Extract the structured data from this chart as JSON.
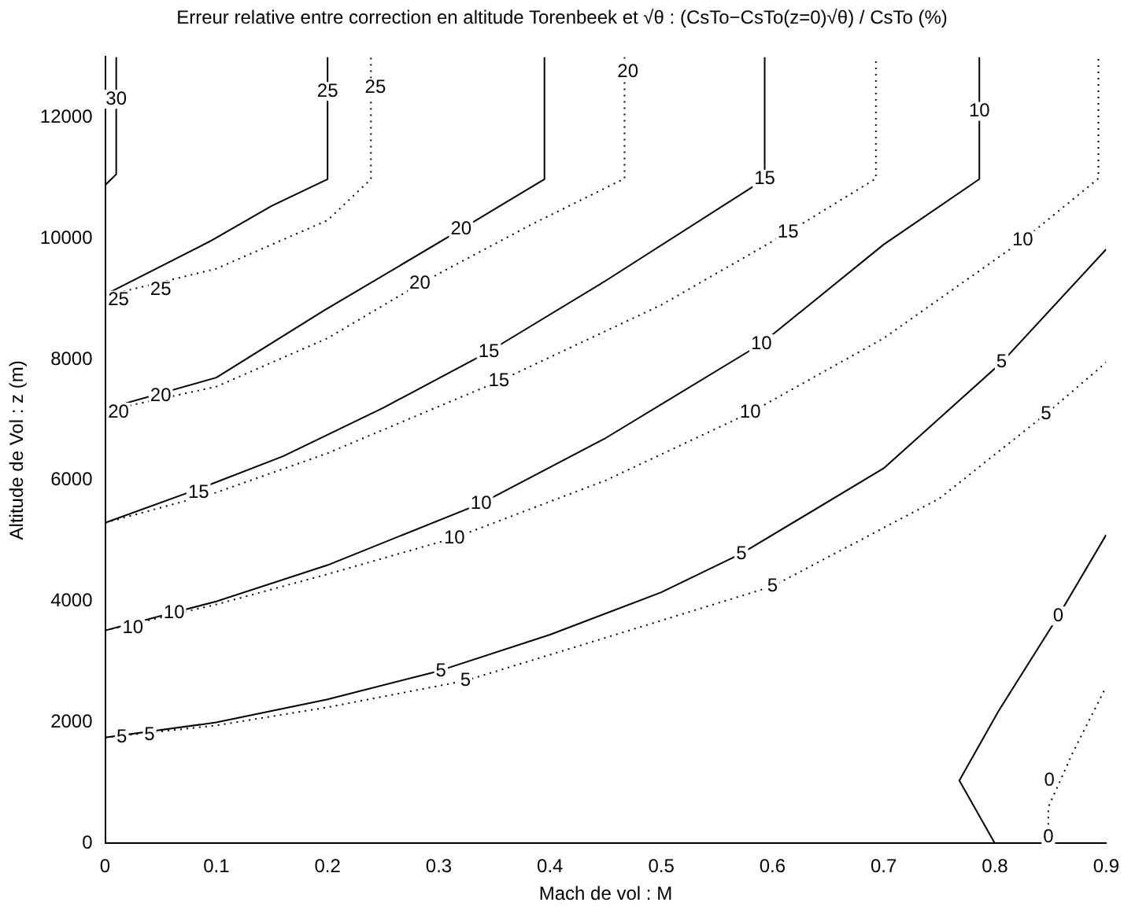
{
  "chart_data": {
    "type": "line",
    "title": "Erreur relative entre correction en altitude Torenbeek et √θ : (CsTo−CsTo(z=0)√θ) / CsTo (%)",
    "xlabel": "Mach de vol : M",
    "ylabel": "Altitude de Vol : z (m)",
    "xlim": [
      0,
      0.9
    ],
    "xticks": [
      0,
      0.1,
      0.2,
      0.3,
      0.4,
      0.5,
      0.6,
      0.7,
      0.8,
      0.9
    ],
    "ylim": [
      0,
      13000
    ],
    "yticks": [
      0,
      2000,
      4000,
      6000,
      8000,
      10000,
      12000
    ],
    "grid": false,
    "legend": false,
    "marker": "none",
    "series": [
      {
        "color": "#000000",
        "line_style": "solid",
        "x": [
          0,
          0.01,
          0.01
        ],
        "values": [
          10880,
          11060,
          13000
        ]
      },
      {
        "color": "#000000",
        "line_style": "solid",
        "x": [
          0,
          0.094,
          0.15,
          0.2,
          0.2
        ],
        "values": [
          9070,
          9950,
          10540,
          10980,
          13000
        ]
      },
      {
        "color": "#000000",
        "line_style": "dotted",
        "x": [
          0,
          0.1,
          0.2,
          0.239,
          0.239
        ],
        "values": [
          9050,
          9500,
          10300,
          10980,
          13000
        ]
      },
      {
        "color": "#000000",
        "line_style": "solid",
        "x": [
          0,
          0.1,
          0.197,
          0.32,
          0.395,
          0.395
        ],
        "values": [
          7180,
          7700,
          8810,
          10150,
          10980,
          13000
        ]
      },
      {
        "color": "#000000",
        "line_style": "dotted",
        "x": [
          0,
          0.1,
          0.2,
          0.283,
          0.38,
          0.467,
          0.467
        ],
        "values": [
          7150,
          7550,
          8350,
          9250,
          10200,
          10990,
          13000
        ]
      },
      {
        "color": "#000000",
        "line_style": "solid",
        "x": [
          0,
          0.09,
          0.16,
          0.25,
          0.345,
          0.45,
          0.593,
          0.593
        ],
        "values": [
          5300,
          5900,
          6400,
          7200,
          8130,
          9300,
          10980,
          13000
        ]
      },
      {
        "color": "#000000",
        "line_style": "dotted",
        "x": [
          0,
          0.1,
          0.2,
          0.354,
          0.5,
          0.614,
          0.693,
          0.693
        ],
        "values": [
          5300,
          5800,
          6450,
          7640,
          8900,
          10100,
          10990,
          13000
        ]
      },
      {
        "color": "#000000",
        "line_style": "solid",
        "x": [
          0,
          0.1,
          0.2,
          0.338,
          0.45,
          0.59,
          0.7,
          0.786,
          0.786
        ],
        "values": [
          3520,
          4000,
          4600,
          5620,
          6700,
          8260,
          9900,
          10980,
          13000
        ]
      },
      {
        "color": "#000000",
        "line_style": "dotted",
        "x": [
          0,
          0.1,
          0.2,
          0.314,
          0.45,
          0.58,
          0.7,
          0.825,
          0.893,
          0.893
        ],
        "values": [
          3520,
          3950,
          4450,
          5050,
          6000,
          7120,
          8350,
          9970,
          10990,
          13000
        ]
      },
      {
        "color": "#000000",
        "line_style": "solid",
        "x": [
          0,
          0.1,
          0.2,
          0.3,
          0.4,
          0.5,
          0.572,
          0.7,
          0.806,
          0.9
        ],
        "values": [
          1750,
          2000,
          2380,
          2850,
          3450,
          4150,
          4790,
          6200,
          7950,
          9820
        ]
      },
      {
        "color": "#000000",
        "line_style": "dotted",
        "x": [
          0,
          0.1,
          0.2,
          0.324,
          0.45,
          0.6,
          0.75,
          0.846,
          0.9
        ],
        "values": [
          1750,
          1950,
          2250,
          2690,
          3400,
          4250,
          5700,
          7100,
          7950
        ]
      },
      {
        "color": "#000000",
        "line_style": "solid",
        "x": [
          0.8,
          0.768,
          0.803,
          0.857,
          0.9
        ],
        "values": [
          0,
          1040,
          2180,
          3760,
          5100
        ]
      },
      {
        "color": "#000000",
        "line_style": "dotted",
        "x": [
          0.848,
          0.848,
          0.87,
          0.9
        ],
        "values": [
          0,
          600,
          1500,
          2590
        ]
      }
    ],
    "annotations": [
      {
        "text": "30",
        "x": 0.01,
        "y": 12300
      },
      {
        "text": "25",
        "x": 0.2,
        "y": 12430
      },
      {
        "text": "25",
        "x": 0.243,
        "y": 12490
      },
      {
        "text": "25",
        "x": 0.012,
        "y": 8980
      },
      {
        "text": "25",
        "x": 0.05,
        "y": 9150
      },
      {
        "text": "20",
        "x": 0.47,
        "y": 12750
      },
      {
        "text": "20",
        "x": 0.012,
        "y": 7130
      },
      {
        "text": "20",
        "x": 0.05,
        "y": 7400
      },
      {
        "text": "20",
        "x": 0.32,
        "y": 10150
      },
      {
        "text": "20",
        "x": 0.283,
        "y": 9250
      },
      {
        "text": "15",
        "x": 0.084,
        "y": 5800
      },
      {
        "text": "15",
        "x": 0.345,
        "y": 8130
      },
      {
        "text": "15",
        "x": 0.354,
        "y": 7640
      },
      {
        "text": "15",
        "x": 0.593,
        "y": 10980
      },
      {
        "text": "15",
        "x": 0.614,
        "y": 10100
      },
      {
        "text": "10",
        "x": 0.786,
        "y": 12100
      },
      {
        "text": "10",
        "x": 0.025,
        "y": 3560
      },
      {
        "text": "10",
        "x": 0.062,
        "y": 3810
      },
      {
        "text": "10",
        "x": 0.338,
        "y": 5620
      },
      {
        "text": "10",
        "x": 0.314,
        "y": 5050
      },
      {
        "text": "10",
        "x": 0.59,
        "y": 8260
      },
      {
        "text": "10",
        "x": 0.58,
        "y": 7120
      },
      {
        "text": "10",
        "x": 0.825,
        "y": 9970
      },
      {
        "text": "5",
        "x": 0.015,
        "y": 1750
      },
      {
        "text": "5",
        "x": 0.04,
        "y": 1800
      },
      {
        "text": "5",
        "x": 0.302,
        "y": 2850
      },
      {
        "text": "5",
        "x": 0.324,
        "y": 2690
      },
      {
        "text": "5",
        "x": 0.572,
        "y": 4790
      },
      {
        "text": "5",
        "x": 0.6,
        "y": 4250
      },
      {
        "text": "5",
        "x": 0.806,
        "y": 7950
      },
      {
        "text": "5",
        "x": 0.846,
        "y": 7100
      },
      {
        "text": "0",
        "x": 0.857,
        "y": 3760
      },
      {
        "text": "0",
        "x": 0.849,
        "y": 1040
      },
      {
        "text": "0",
        "x": 0.848,
        "y": 100
      }
    ]
  }
}
